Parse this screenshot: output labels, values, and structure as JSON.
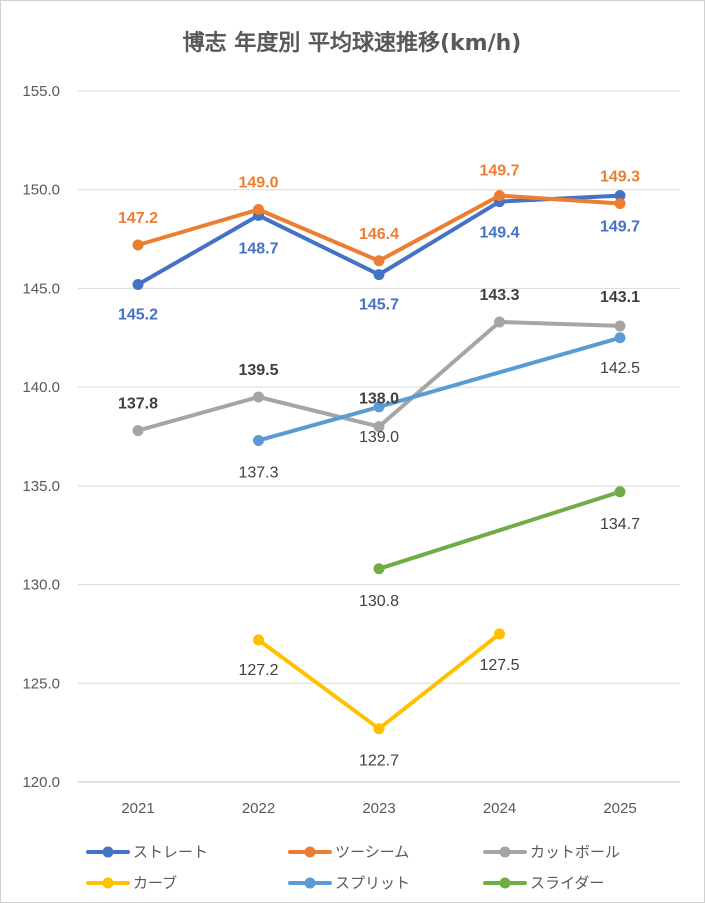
{
  "chart_data": {
    "type": "line",
    "title": "博志 年度別 平均球速推移(km/h)",
    "xlabel": "",
    "ylabel": "",
    "categories": [
      "2021",
      "2022",
      "2023",
      "2024",
      "2025"
    ],
    "ylim": [
      120,
      155
    ],
    "yticks": [
      "120.0",
      "125.0",
      "130.0",
      "135.0",
      "140.0",
      "145.0",
      "150.0",
      "155.0"
    ],
    "grid": true,
    "legend_position": "bottom",
    "series": [
      {
        "name": "ストレート",
        "color": "#4472C4",
        "values": [
          145.2,
          148.7,
          145.7,
          149.4,
          149.7
        ],
        "labels": [
          "145.2",
          "148.7",
          "145.7",
          "149.4",
          "149.7"
        ]
      },
      {
        "name": "ツーシーム",
        "color": "#ED7D31",
        "values": [
          147.2,
          149.0,
          146.4,
          149.7,
          149.3
        ],
        "labels": [
          "147.2",
          "149.0",
          "146.4",
          "149.7",
          "149.3"
        ]
      },
      {
        "name": "カットボール",
        "color": "#A5A5A5",
        "values": [
          137.8,
          139.5,
          138.0,
          143.3,
          143.1
        ],
        "labels": [
          "137.8",
          "139.5",
          "138.0",
          "143.3",
          "143.1"
        ]
      },
      {
        "name": "カーブ",
        "color": "#FFC000",
        "values": [
          null,
          127.2,
          122.7,
          127.5,
          null
        ],
        "labels": [
          null,
          "127.2",
          "122.7",
          "127.5",
          null
        ]
      },
      {
        "name": "スプリット",
        "color": "#5B9BD5",
        "values": [
          null,
          137.3,
          139.0,
          null,
          142.5
        ],
        "labels": [
          null,
          "137.3",
          "139.0",
          null,
          "142.5"
        ]
      },
      {
        "name": "スライダー",
        "color": "#70AD47",
        "values": [
          null,
          null,
          130.8,
          null,
          134.7
        ],
        "labels": [
          null,
          null,
          "130.8",
          null,
          "134.7"
        ]
      }
    ]
  }
}
